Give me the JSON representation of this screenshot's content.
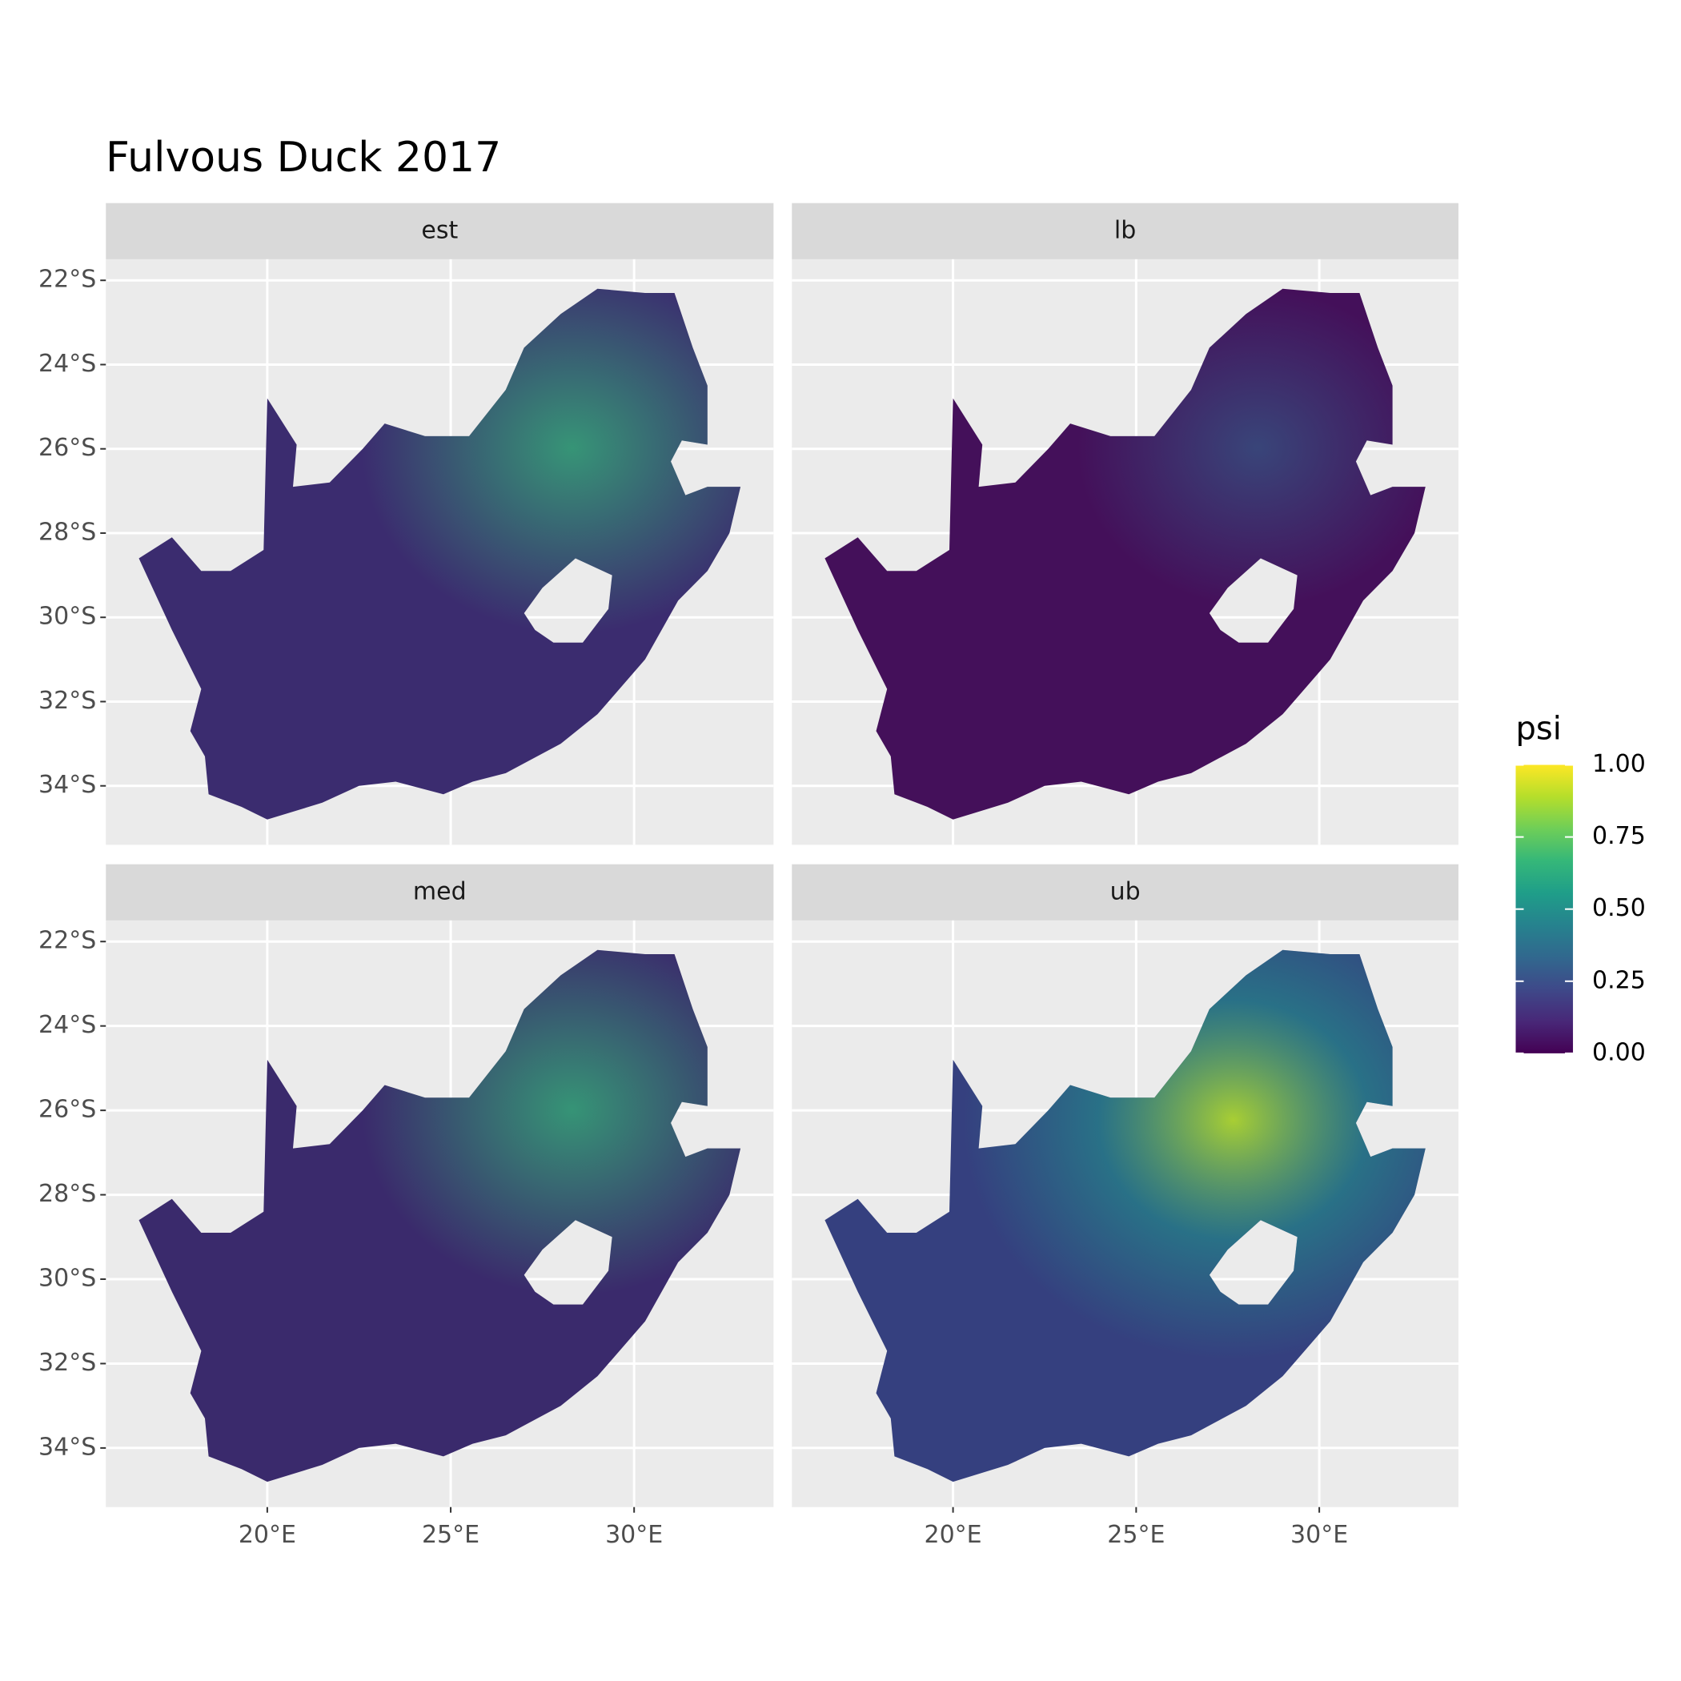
{
  "chart_data": {
    "type": "raster-map",
    "title": "Fulvous Duck 2017",
    "facets": [
      "est",
      "lb",
      "med",
      "ub"
    ],
    "xlim": [
      15.6,
      33.8
    ],
    "ylim": [
      -35.4,
      -21.5
    ],
    "xticks": [
      {
        "value": 20,
        "label": "20°E"
      },
      {
        "value": 25,
        "label": "25°E"
      },
      {
        "value": 30,
        "label": "30°E"
      }
    ],
    "yticks": [
      {
        "value": -22,
        "label": "22°S"
      },
      {
        "value": -24,
        "label": "24°S"
      },
      {
        "value": -26,
        "label": "26°S"
      },
      {
        "value": -28,
        "label": "28°S"
      },
      {
        "value": -30,
        "label": "30°S"
      },
      {
        "value": -32,
        "label": "32°S"
      },
      {
        "value": -34,
        "label": "34°S"
      }
    ],
    "grid": true,
    "legend": {
      "title": "psi",
      "position": "right",
      "colorscale": "viridis",
      "lim": [
        0,
        1
      ],
      "ticks": [
        {
          "value": 0,
          "label": "0.00"
        },
        {
          "value": 0.25,
          "label": "0.25"
        },
        {
          "value": 0.5,
          "label": "0.50"
        },
        {
          "value": 0.75,
          "label": "0.75"
        },
        {
          "value": 1,
          "label": "1.00"
        }
      ]
    }
  }
}
